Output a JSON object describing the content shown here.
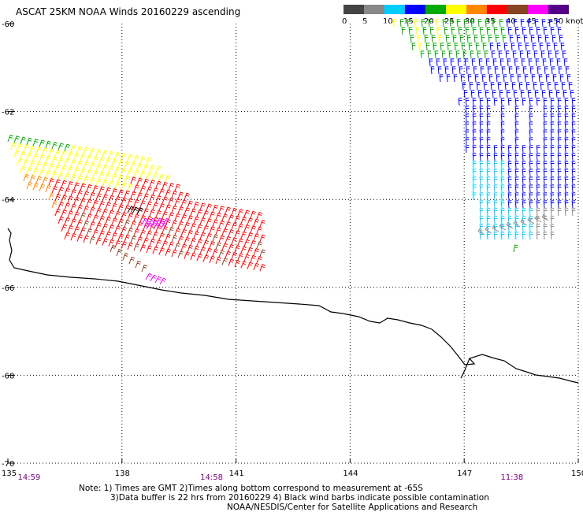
{
  "title": "ASCAT 25KM NOAA Winds 20160229 ascending",
  "colorbar": {
    "labels": [
      "0",
      "5",
      "10",
      "15",
      "20",
      "25",
      "30",
      "35",
      "40",
      "45",
      ">50 knots"
    ],
    "colors": [
      "#444444",
      "#888888",
      "#00ccff",
      "#0000ff",
      "#00aa00",
      "#ffff00",
      "#ff8800",
      "#ff0000",
      "#884422",
      "#ff00ff",
      "#550088"
    ]
  },
  "map": {
    "lat_labels": [
      "-60",
      "-62",
      "-64",
      "-66",
      "-68",
      "-70"
    ],
    "lon_labels": [
      "135",
      "138",
      "141",
      "144",
      "147",
      "150"
    ],
    "time_labels": [
      {
        "text": "14:59",
        "lon": 135.3
      },
      {
        "text": "14:58",
        "lon": 140.1
      },
      {
        "text": "11:38",
        "lon": 148.0
      }
    ],
    "coastline_color": "#000000",
    "grid": "dotted"
  },
  "notes": [
    "Note: 1) Times are GMT 2)Times along bottom correspond to measurement at -65S",
    "3)Data buffer is 22 hrs from 20160229 4) Black wind barbs indicate possible contamination",
    "NOAA/NESDIS/Center for Satellite Applications and Research"
  ]
}
